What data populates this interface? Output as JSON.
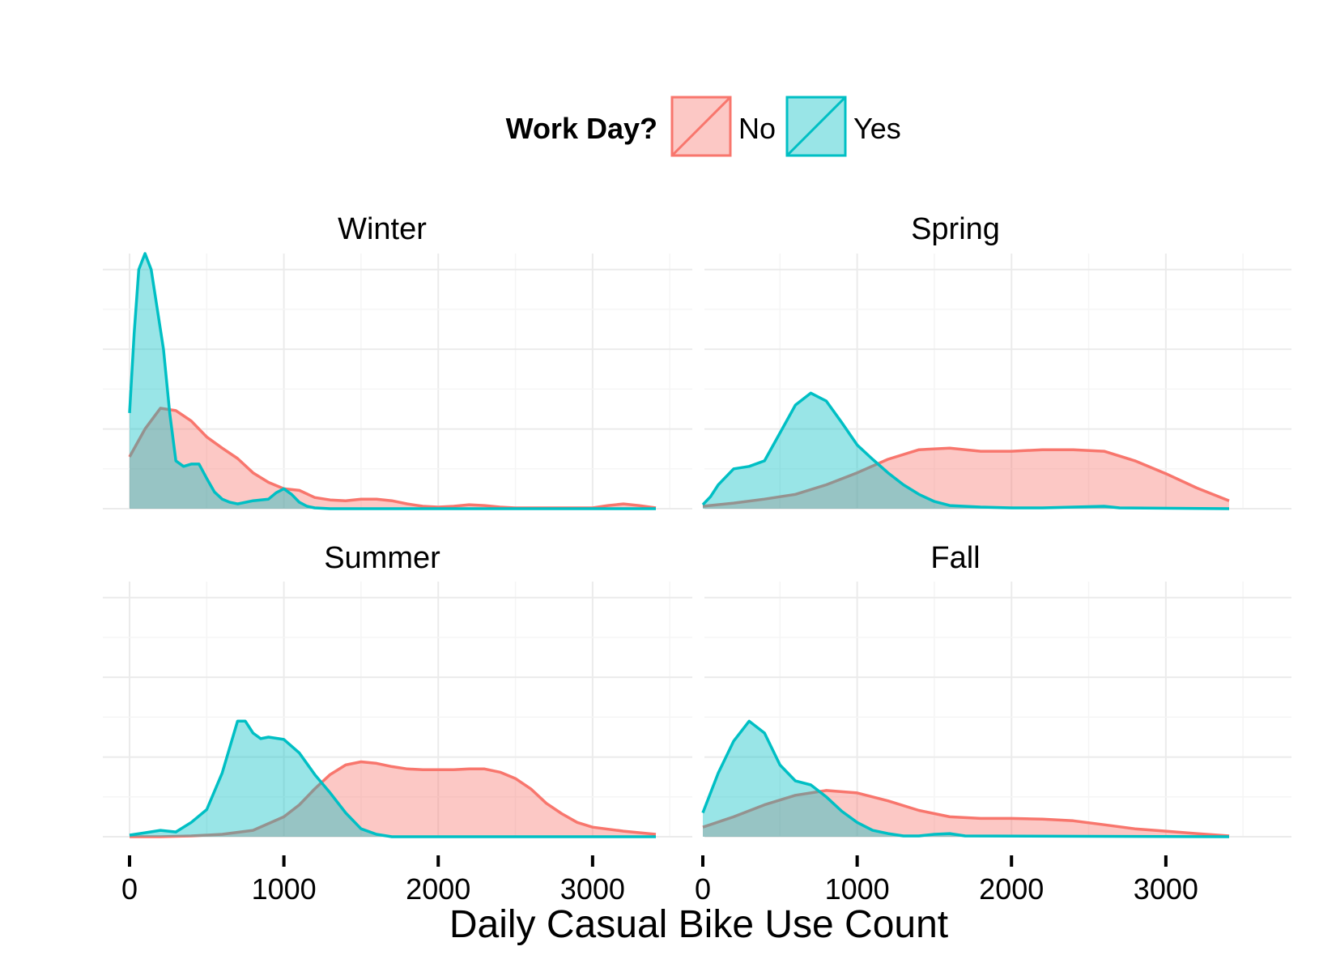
{
  "chart_data": {
    "type": "area",
    "subtype": "density (faceted)",
    "xlabel": "Daily Casual Bike Use Count",
    "ylabel": "",
    "xlim": [
      0,
      3410
    ],
    "x_ticks": [
      0,
      1000,
      2000,
      3000
    ],
    "x_tick_labels": [
      "0",
      "1000",
      "2000",
      "3000"
    ],
    "y_ticks_shown": false,
    "grid": true,
    "legend": {
      "title": "Work Day?",
      "position": "top",
      "entries": [
        {
          "label": "No",
          "color": "#F8766D"
        },
        {
          "label": "Yes",
          "color": "#00BFC4"
        }
      ]
    },
    "panels": [
      {
        "title": "Winter",
        "ylim": [
          0,
          32
        ],
        "series": [
          {
            "name": "No",
            "points": [
              [
                0,
                6.5
              ],
              [
                100,
                10
              ],
              [
                200,
                12.6
              ],
              [
                300,
                12.3
              ],
              [
                400,
                11
              ],
              [
                500,
                9
              ],
              [
                600,
                7.6
              ],
              [
                700,
                6.3
              ],
              [
                800,
                4.5
              ],
              [
                900,
                3.3
              ],
              [
                1000,
                2.5
              ],
              [
                1100,
                2.3
              ],
              [
                1200,
                1.4
              ],
              [
                1300,
                1.1
              ],
              [
                1400,
                1
              ],
              [
                1500,
                1.2
              ],
              [
                1600,
                1.2
              ],
              [
                1700,
                1
              ],
              [
                1800,
                0.6
              ],
              [
                1900,
                0.3
              ],
              [
                2000,
                0.2
              ],
              [
                2100,
                0.3
              ],
              [
                2200,
                0.5
              ],
              [
                2300,
                0.4
              ],
              [
                2400,
                0.2
              ],
              [
                2500,
                0.1
              ],
              [
                2700,
                0.1
              ],
              [
                3000,
                0.1
              ],
              [
                3100,
                0.4
              ],
              [
                3200,
                0.6
              ],
              [
                3300,
                0.4
              ],
              [
                3410,
                0.1
              ]
            ]
          },
          {
            "name": "Yes",
            "points": [
              [
                0,
                12
              ],
              [
                30,
                22
              ],
              [
                60,
                30
              ],
              [
                100,
                32
              ],
              [
                140,
                30
              ],
              [
                180,
                25
              ],
              [
                220,
                20
              ],
              [
                260,
                12
              ],
              [
                300,
                6
              ],
              [
                350,
                5.3
              ],
              [
                400,
                5.6
              ],
              [
                450,
                5.6
              ],
              [
                500,
                3.8
              ],
              [
                550,
                2.1
              ],
              [
                600,
                1.2
              ],
              [
                650,
                0.8
              ],
              [
                700,
                0.6
              ],
              [
                800,
                1
              ],
              [
                900,
                1.2
              ],
              [
                950,
                2
              ],
              [
                1000,
                2.5
              ],
              [
                1050,
                1.8
              ],
              [
                1100,
                0.8
              ],
              [
                1150,
                0.3
              ],
              [
                1200,
                0.1
              ],
              [
                1300,
                0
              ],
              [
                3410,
                0
              ]
            ]
          }
        ]
      },
      {
        "title": "Spring",
        "ylim": [
          0,
          32
        ],
        "series": [
          {
            "name": "No",
            "points": [
              [
                0,
                0.3
              ],
              [
                200,
                0.7
              ],
              [
                400,
                1.2
              ],
              [
                600,
                1.8
              ],
              [
                800,
                3
              ],
              [
                1000,
                4.5
              ],
              [
                1200,
                6.2
              ],
              [
                1400,
                7.4
              ],
              [
                1600,
                7.6
              ],
              [
                1800,
                7.2
              ],
              [
                2000,
                7.2
              ],
              [
                2200,
                7.4
              ],
              [
                2400,
                7.4
              ],
              [
                2600,
                7.2
              ],
              [
                2800,
                6
              ],
              [
                3000,
                4.4
              ],
              [
                3200,
                2.6
              ],
              [
                3410,
                1
              ]
            ]
          },
          {
            "name": "Yes",
            "points": [
              [
                0,
                0.5
              ],
              [
                50,
                1.5
              ],
              [
                100,
                3
              ],
              [
                200,
                5
              ],
              [
                300,
                5.3
              ],
              [
                400,
                6
              ],
              [
                500,
                9.5
              ],
              [
                600,
                13
              ],
              [
                700,
                14.5
              ],
              [
                800,
                13.5
              ],
              [
                900,
                10.8
              ],
              [
                1000,
                8
              ],
              [
                1100,
                6.2
              ],
              [
                1200,
                4.5
              ],
              [
                1300,
                3
              ],
              [
                1400,
                1.8
              ],
              [
                1500,
                0.9
              ],
              [
                1600,
                0.4
              ],
              [
                1800,
                0.2
              ],
              [
                2000,
                0.1
              ],
              [
                2200,
                0.1
              ],
              [
                2400,
                0.2
              ],
              [
                2600,
                0.3
              ],
              [
                2700,
                0.1
              ],
              [
                3410,
                0
              ]
            ]
          }
        ]
      },
      {
        "title": "Summer",
        "ylim": [
          0,
          32
        ],
        "series": [
          {
            "name": "No",
            "points": [
              [
                0,
                0
              ],
              [
                200,
                0
              ],
              [
                400,
                0.1
              ],
              [
                600,
                0.3
              ],
              [
                800,
                0.8
              ],
              [
                1000,
                2.5
              ],
              [
                1100,
                4
              ],
              [
                1200,
                6
              ],
              [
                1300,
                7.8
              ],
              [
                1400,
                9
              ],
              [
                1500,
                9.4
              ],
              [
                1600,
                9.2
              ],
              [
                1700,
                8.8
              ],
              [
                1800,
                8.5
              ],
              [
                1900,
                8.4
              ],
              [
                2000,
                8.4
              ],
              [
                2100,
                8.4
              ],
              [
                2200,
                8.5
              ],
              [
                2300,
                8.5
              ],
              [
                2400,
                8.1
              ],
              [
                2500,
                7.3
              ],
              [
                2600,
                6
              ],
              [
                2700,
                4.2
              ],
              [
                2800,
                2.9
              ],
              [
                2900,
                1.8
              ],
              [
                3000,
                1.2
              ],
              [
                3200,
                0.7
              ],
              [
                3410,
                0.3
              ]
            ]
          },
          {
            "name": "Yes",
            "points": [
              [
                0,
                0.2
              ],
              [
                100,
                0.5
              ],
              [
                200,
                0.8
              ],
              [
                300,
                0.6
              ],
              [
                400,
                1.8
              ],
              [
                500,
                3.4
              ],
              [
                600,
                8
              ],
              [
                700,
                14.5
              ],
              [
                750,
                14.5
              ],
              [
                800,
                13
              ],
              [
                850,
                12.3
              ],
              [
                900,
                12.5
              ],
              [
                1000,
                12.2
              ],
              [
                1100,
                10.5
              ],
              [
                1200,
                7.8
              ],
              [
                1300,
                5.5
              ],
              [
                1400,
                3
              ],
              [
                1500,
                1
              ],
              [
                1600,
                0.3
              ],
              [
                1700,
                0
              ],
              [
                3410,
                0
              ]
            ]
          }
        ]
      },
      {
        "title": "Fall",
        "ylim": [
          0,
          32
        ],
        "series": [
          {
            "name": "No",
            "points": [
              [
                0,
                1.2
              ],
              [
                200,
                2.5
              ],
              [
                400,
                4
              ],
              [
                600,
                5.2
              ],
              [
                800,
                5.8
              ],
              [
                1000,
                5.5
              ],
              [
                1200,
                4.5
              ],
              [
                1400,
                3.3
              ],
              [
                1600,
                2.5
              ],
              [
                1800,
                2.3
              ],
              [
                2000,
                2.3
              ],
              [
                2200,
                2.2
              ],
              [
                2400,
                2
              ],
              [
                2600,
                1.5
              ],
              [
                2800,
                1
              ],
              [
                3000,
                0.7
              ],
              [
                3200,
                0.4
              ],
              [
                3410,
                0.1
              ]
            ]
          },
          {
            "name": "Yes",
            "points": [
              [
                0,
                3
              ],
              [
                100,
                8
              ],
              [
                200,
                12
              ],
              [
                300,
                14.5
              ],
              [
                400,
                13
              ],
              [
                500,
                9
              ],
              [
                600,
                7
              ],
              [
                700,
                6.5
              ],
              [
                800,
                5
              ],
              [
                900,
                3.2
              ],
              [
                1000,
                1.8
              ],
              [
                1100,
                0.8
              ],
              [
                1200,
                0.4
              ],
              [
                1300,
                0.1
              ],
              [
                1400,
                0.1
              ],
              [
                1500,
                0.3
              ],
              [
                1600,
                0.4
              ],
              [
                1700,
                0.1
              ],
              [
                3410,
                0
              ]
            ]
          }
        ]
      }
    ]
  }
}
